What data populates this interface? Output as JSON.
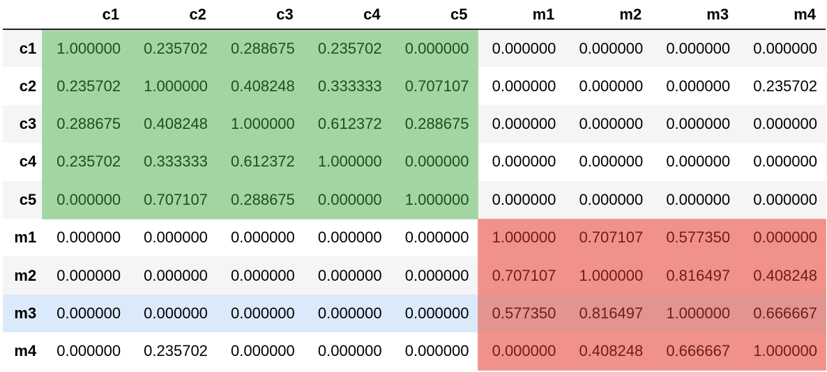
{
  "table": {
    "columns": [
      "c1",
      "c2",
      "c3",
      "c4",
      "c5",
      "m1",
      "m2",
      "m3",
      "m4"
    ],
    "rows": [
      {
        "label": "c1",
        "values": [
          "1.000000",
          "0.235702",
          "0.288675",
          "0.235702",
          "0.000000",
          "0.000000",
          "0.000000",
          "0.000000",
          "0.000000"
        ]
      },
      {
        "label": "c2",
        "values": [
          "0.235702",
          "1.000000",
          "0.408248",
          "0.333333",
          "0.707107",
          "0.000000",
          "0.000000",
          "0.000000",
          "0.235702"
        ]
      },
      {
        "label": "c3",
        "values": [
          "0.288675",
          "0.408248",
          "1.000000",
          "0.612372",
          "0.288675",
          "0.000000",
          "0.000000",
          "0.000000",
          "0.000000"
        ]
      },
      {
        "label": "c4",
        "values": [
          "0.235702",
          "0.333333",
          "0.612372",
          "1.000000",
          "0.000000",
          "0.000000",
          "0.000000",
          "0.000000",
          "0.000000"
        ]
      },
      {
        "label": "c5",
        "values": [
          "0.000000",
          "0.707107",
          "0.288675",
          "0.000000",
          "1.000000",
          "0.000000",
          "0.000000",
          "0.000000",
          "0.000000"
        ]
      },
      {
        "label": "m1",
        "values": [
          "0.000000",
          "0.000000",
          "0.000000",
          "0.000000",
          "0.000000",
          "1.000000",
          "0.707107",
          "0.577350",
          "0.000000"
        ]
      },
      {
        "label": "m2",
        "values": [
          "0.000000",
          "0.000000",
          "0.000000",
          "0.000000",
          "0.000000",
          "0.707107",
          "1.000000",
          "0.816497",
          "0.408248"
        ]
      },
      {
        "label": "m3",
        "values": [
          "0.000000",
          "0.000000",
          "0.000000",
          "0.000000",
          "0.000000",
          "0.577350",
          "0.816497",
          "1.000000",
          "0.666667"
        ]
      },
      {
        "label": "m4",
        "values": [
          "0.000000",
          "0.235702",
          "0.000000",
          "0.000000",
          "0.000000",
          "0.000000",
          "0.408248",
          "0.666667",
          "1.000000"
        ]
      }
    ],
    "hovered_row": "m3",
    "highlight_colors": {
      "c_block": "#a3d5a3",
      "m_block": "#f0918a",
      "hover_row": "#dbeafb"
    }
  }
}
